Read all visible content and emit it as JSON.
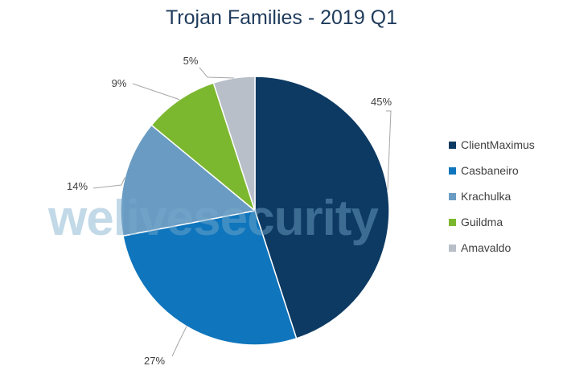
{
  "chart_data": {
    "type": "pie",
    "title": "Trojan Families - 2019 Q1",
    "slices": [
      {
        "name": "ClientMaximus",
        "value": 45,
        "label": "45%",
        "color": "#0d3a63"
      },
      {
        "name": "Casbaneiro",
        "value": 27,
        "label": "27%",
        "color": "#0f75bc"
      },
      {
        "name": "Krachulka",
        "value": 14,
        "label": "14%",
        "color": "#6a9cc3"
      },
      {
        "name": "Guildma",
        "value": 9,
        "label": "9%",
        "color": "#7cb82f"
      },
      {
        "name": "Amavaldo",
        "value": 5,
        "label": "5%",
        "color": "#b8bfc9"
      }
    ],
    "legend_position": "right"
  },
  "watermark": "welivesecurity"
}
